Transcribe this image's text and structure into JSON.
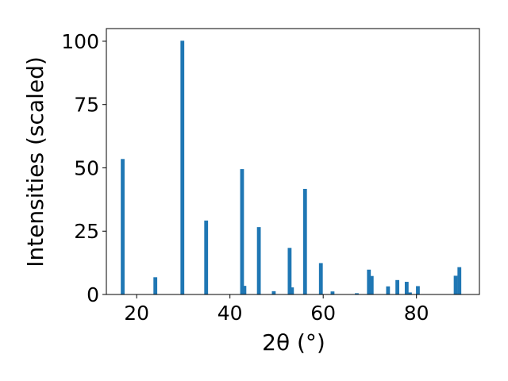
{
  "chart_data": {
    "type": "bar",
    "title": "",
    "xlabel": "2θ (°)",
    "ylabel": "Intensities (scaled)",
    "xlim": [
      13.5,
      93.5
    ],
    "ylim": [
      0,
      105
    ],
    "xticks": [
      20,
      40,
      60,
      80
    ],
    "yticks": [
      0,
      25,
      50,
      75,
      100
    ],
    "grid": false,
    "bar_color": "#1f77b4",
    "x": [
      17.0,
      24.0,
      29.8,
      34.9,
      42.6,
      43.1,
      46.2,
      49.4,
      52.8,
      53.3,
      56.1,
      59.5,
      62.0,
      67.2,
      69.8,
      70.4,
      73.9,
      75.9,
      77.9,
      78.6,
      80.3,
      88.4,
      89.2
    ],
    "values": [
      53.5,
      6.8,
      100.2,
      29.2,
      49.5,
      3.4,
      26.6,
      1.3,
      18.4,
      2.8,
      41.7,
      12.4,
      1.2,
      0.5,
      9.8,
      7.3,
      3.2,
      5.7,
      5.0,
      0.8,
      3.3,
      7.4,
      10.8
    ]
  }
}
